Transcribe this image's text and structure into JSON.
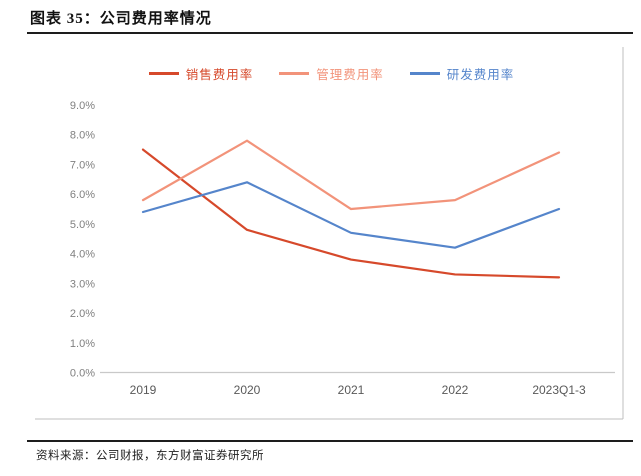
{
  "figure": {
    "title": "图表 35：公司费用率情况",
    "source": "资料来源：公司财报，东方财富证券研究所"
  },
  "colors": {
    "title_text": "#111111",
    "separator": "#1d1d1d",
    "chart_frame": "#bfbfbf",
    "axis_line": "#c9c9c9",
    "ytick_text": "#808080",
    "xtick_text": "#595959"
  },
  "chart_data": {
    "type": "line",
    "title": "公司费用率情况",
    "categories": [
      "2019",
      "2020",
      "2021",
      "2022",
      "2023Q1-3"
    ],
    "series": [
      {
        "name": "销售费用率",
        "color": "#d6492b",
        "values": [
          7.5,
          4.8,
          3.8,
          3.3,
          3.2
        ]
      },
      {
        "name": "管理费用率",
        "color": "#f2937a",
        "values": [
          5.8,
          7.8,
          5.5,
          5.8,
          7.4
        ]
      },
      {
        "name": "研发费用率",
        "color": "#5585cb",
        "values": [
          5.4,
          6.4,
          4.7,
          4.2,
          5.5
        ]
      }
    ],
    "xlabel": "",
    "ylabel": "",
    "ylim": [
      0,
      9
    ],
    "ytick_step": 1,
    "ytick_labels": [
      "0.0%",
      "1.0%",
      "2.0%",
      "3.0%",
      "4.0%",
      "5.0%",
      "6.0%",
      "7.0%",
      "8.0%",
      "9.0%"
    ],
    "grid": false,
    "legend_position": "top"
  }
}
